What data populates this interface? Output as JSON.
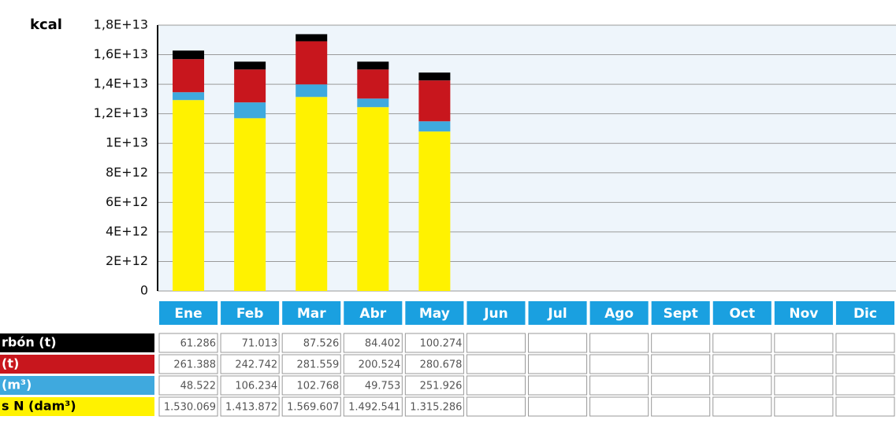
{
  "chart_data": {
    "type": "stacked_bar",
    "y_label": "kcal",
    "categories": [
      "Ene",
      "Feb",
      "Mar",
      "Abr",
      "May",
      "Jun",
      "Jul",
      "Ago",
      "Sept",
      "Oct",
      "Nov",
      "Dic"
    ],
    "ylim": [
      0,
      18000000000000
    ],
    "yticks": [
      0,
      {
        "value": 2000000000000,
        "label": "2E+12"
      },
      {
        "value": 4000000000000,
        "label": "4E+12"
      },
      {
        "value": 6000000000000,
        "label": "6E+12"
      },
      {
        "value": 8000000000000,
        "label": "8E+12"
      },
      {
        "value": 10000000000000,
        "label": "1E+13"
      },
      {
        "value": 12000000000000,
        "label": "1,2E+13"
      },
      {
        "value": 14000000000000,
        "label": "1,4E+13"
      },
      {
        "value": 16000000000000,
        "label": "1,6E+13"
      },
      {
        "value": 18000000000000,
        "label": "1,8E+13"
      }
    ],
    "grid": true,
    "series": [
      {
        "name": "rbón (t)",
        "color": "#000000",
        "text_color": "#ffffff",
        "values": [
          580000000000,
          530000000000,
          480000000000,
          530000000000,
          530000000000,
          null,
          null,
          null,
          null,
          null,
          null,
          null
        ],
        "table": [
          "61.286",
          "71.013",
          "87.526",
          "84.402",
          "100.274"
        ]
      },
      {
        "name": "(t)",
        "color": "#c8161d",
        "text_color": "#ffffff",
        "values": [
          2240000000000,
          2230000000000,
          2920000000000,
          1970000000000,
          2770000000000,
          null,
          null,
          null,
          null,
          null,
          null,
          null
        ],
        "table": [
          "261.388",
          "242.742",
          "281.559",
          "200.524",
          "280.678"
        ]
      },
      {
        "name": "(m³)",
        "color": "#3fa9de",
        "text_color": "#ffffff",
        "values": [
          530000000000,
          1070000000000,
          850000000000,
          580000000000,
          690000000000,
          null,
          null,
          null,
          null,
          null,
          null,
          null
        ],
        "table": [
          "48.522",
          "106.234",
          "102.768",
          "49.753",
          "251.926"
        ]
      },
      {
        "name": "s N (dam³)",
        "color": "#fff200",
        "text_color": "#000000",
        "values": [
          12930000000000,
          11700000000000,
          13140000000000,
          12450000000000,
          10800000000000,
          null,
          null,
          null,
          null,
          null,
          null,
          null
        ],
        "table": [
          "1.530.069",
          "1.413.872",
          "1.569.607",
          "1.492.541",
          "1.315.286"
        ]
      }
    ]
  }
}
